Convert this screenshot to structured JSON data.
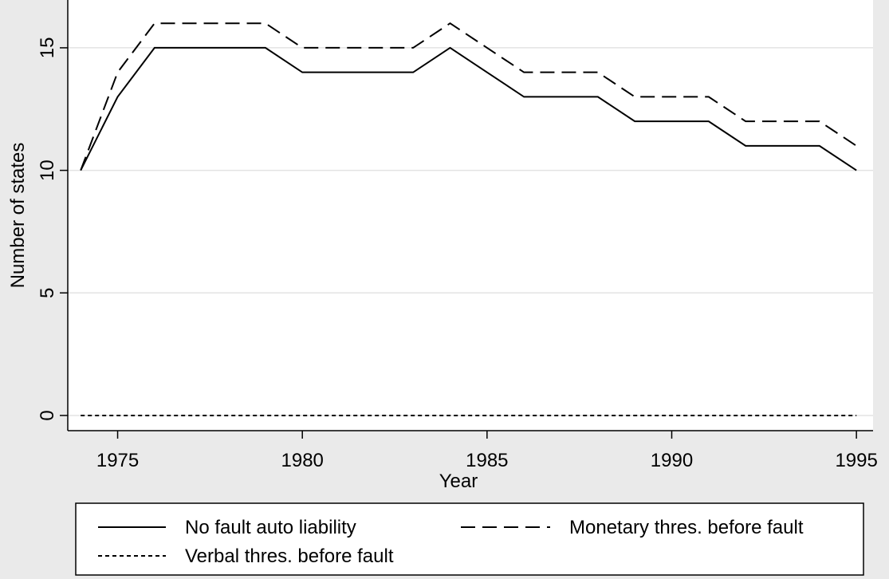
{
  "chart_data": {
    "type": "line",
    "xlabel": "Year",
    "ylabel": "Number of states",
    "x": [
      1974,
      1975,
      1976,
      1977,
      1978,
      1979,
      1980,
      1981,
      1982,
      1983,
      1984,
      1985,
      1986,
      1987,
      1988,
      1989,
      1990,
      1991,
      1992,
      1993,
      1994,
      1995
    ],
    "series": [
      {
        "name": "No fault auto liability",
        "color": "#000000",
        "style": "solid",
        "values": [
          10,
          13,
          15,
          15,
          15,
          15,
          14,
          14,
          14,
          14,
          15,
          14,
          13,
          13,
          13,
          12,
          12,
          12,
          11,
          11,
          11,
          10
        ]
      },
      {
        "name": "Monetary thres. before fault",
        "color": "#000000",
        "style": "dash",
        "values": [
          10,
          14,
          16,
          16,
          16,
          16,
          15,
          15,
          15,
          15,
          16,
          15,
          14,
          14,
          14,
          13,
          13,
          13,
          12,
          12,
          12,
          11
        ]
      },
      {
        "name": "Verbal thres. before fault",
        "color": "#000000",
        "style": "dot",
        "values": [
          0,
          0,
          0,
          0,
          0,
          0,
          0,
          0,
          0,
          0,
          0,
          0,
          0,
          0,
          0,
          0,
          0,
          0,
          0,
          0,
          0,
          0
        ]
      }
    ],
    "xlim": [
      1973.65,
      1995.45
    ],
    "ylim": [
      -0.62,
      16.95
    ],
    "xticks": [
      1975,
      1980,
      1985,
      1990,
      1995
    ],
    "yticks": [
      0,
      5,
      10,
      15
    ],
    "grid": true,
    "legend": "bottom"
  }
}
